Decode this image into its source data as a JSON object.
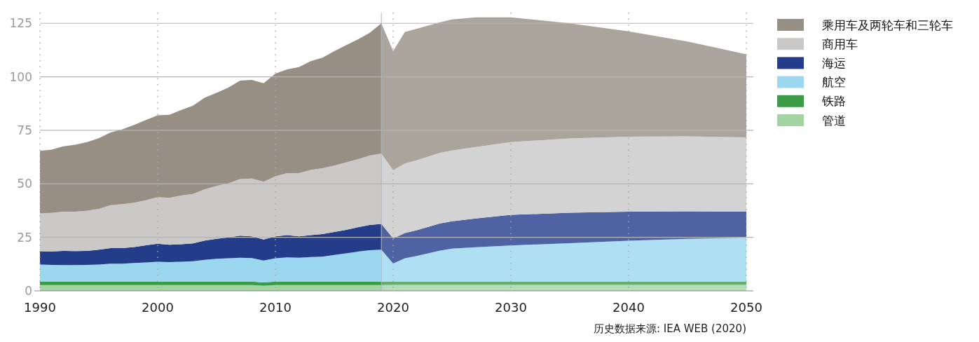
{
  "chart_data": {
    "type": "area",
    "stacked": true,
    "x": [
      1990,
      1991,
      1992,
      1993,
      1994,
      1995,
      1996,
      1997,
      1998,
      1999,
      2000,
      2001,
      2002,
      2003,
      2004,
      2005,
      2006,
      2007,
      2008,
      2009,
      2010,
      2011,
      2012,
      2013,
      2014,
      2015,
      2016,
      2017,
      2018,
      2019,
      2020,
      2021,
      2022,
      2024,
      2025,
      2027,
      2030,
      2035,
      2040,
      2045,
      2050
    ],
    "series": [
      {
        "name": "管道",
        "color": "#a3d5a3",
        "values": [
          2.7,
          2.7,
          2.7,
          2.7,
          2.7,
          2.7,
          2.7,
          2.7,
          2.7,
          2.7,
          2.7,
          2.7,
          2.7,
          2.7,
          2.7,
          2.7,
          2.7,
          2.7,
          2.7,
          2.4,
          2.7,
          2.7,
          2.7,
          2.7,
          2.7,
          2.7,
          2.7,
          2.7,
          2.7,
          2.7,
          2.8,
          2.8,
          2.8,
          2.8,
          2.8,
          2.8,
          2.8,
          2.8,
          2.8,
          2.8,
          2.8
        ]
      },
      {
        "name": "铁路",
        "color": "#3a9c47",
        "values": [
          1.6,
          1.6,
          1.6,
          1.6,
          1.6,
          1.6,
          1.6,
          1.6,
          1.6,
          1.6,
          1.6,
          1.6,
          1.6,
          1.6,
          1.6,
          1.6,
          1.6,
          1.6,
          1.6,
          1.5,
          1.6,
          1.6,
          1.6,
          1.6,
          1.6,
          1.6,
          1.6,
          1.6,
          1.6,
          1.6,
          1.5,
          1.5,
          1.5,
          1.5,
          1.5,
          1.5,
          1.5,
          1.5,
          1.5,
          1.5,
          1.5
        ]
      },
      {
        "name": "航空",
        "color": "#9bd8f0",
        "values": [
          8.0,
          7.8,
          7.7,
          7.7,
          7.8,
          8.0,
          8.4,
          8.4,
          8.7,
          9.0,
          9.3,
          9.1,
          9.3,
          9.5,
          10.2,
          10.7,
          10.9,
          11.2,
          11.0,
          10.3,
          10.9,
          11.3,
          11.2,
          11.5,
          11.7,
          12.5,
          13.2,
          14.0,
          14.7,
          14.9,
          8.5,
          10.9,
          12.0,
          14.5,
          15.4,
          16.1,
          16.9,
          18.0,
          19.1,
          20.0,
          20.6
        ]
      },
      {
        "name": "海运",
        "color": "#233d8b",
        "values": [
          6.2,
          6.3,
          6.7,
          6.6,
          6.6,
          6.9,
          7.3,
          7.3,
          7.5,
          8.0,
          8.4,
          8.1,
          8.2,
          8.4,
          9.0,
          9.3,
          9.8,
          10.3,
          10.2,
          9.8,
          10.3,
          10.4,
          10.0,
          10.2,
          10.5,
          10.7,
          11.0,
          11.4,
          11.8,
          12.1,
          11.7,
          11.8,
          12.0,
          12.7,
          12.8,
          13.4,
          14.3,
          14.2,
          13.6,
          12.9,
          12.1
        ]
      },
      {
        "name": "商用车",
        "color": "#cac9c8",
        "values": [
          17.7,
          18.0,
          18.3,
          18.4,
          18.7,
          19.1,
          20.0,
          20.5,
          20.7,
          21.0,
          21.8,
          22.0,
          22.7,
          23.1,
          24.0,
          24.7,
          25.3,
          26.4,
          27.0,
          27.0,
          28.0,
          29.0,
          29.5,
          30.5,
          30.8,
          31.0,
          31.5,
          31.8,
          32.4,
          32.9,
          31.8,
          32.5,
          32.7,
          33.0,
          33.1,
          33.4,
          34.0,
          34.7,
          35.0,
          35.0,
          34.7
        ]
      },
      {
        "name": "乘用车及两轮车和三轮车",
        "color": "#978e84",
        "values": [
          29.2,
          29.6,
          30.5,
          31.3,
          32.1,
          33.0,
          34.0,
          35.0,
          36.3,
          37.5,
          38.2,
          38.8,
          40.0,
          41.2,
          42.8,
          43.5,
          44.7,
          46.0,
          46.1,
          46.0,
          48.0,
          48.5,
          49.5,
          50.8,
          51.7,
          53.5,
          54.8,
          56.0,
          57.3,
          60.8,
          55.7,
          61.5,
          61.5,
          61.0,
          61.2,
          60.6,
          58.3,
          53.8,
          49.2,
          44.3,
          38.8
        ]
      }
    ],
    "xlim": [
      1990,
      2050
    ],
    "xticks": [
      1990,
      2000,
      2010,
      2020,
      2030,
      2040,
      2050
    ],
    "ylim": [
      0,
      130
    ],
    "yticks": [
      0,
      25,
      50,
      75,
      100,
      125
    ],
    "grid": true,
    "legend": "right",
    "ref_lines": [
      {
        "axis": "x",
        "value": 2019,
        "label": null,
        "color": "#aeb8c4"
      }
    ],
    "bands": [
      {
        "axis": "x",
        "from": 2019,
        "to": 2050,
        "label": null,
        "color": "#ffffff"
      }
    ],
    "annotations": [
      "历史数据来源: IEA WEB (2020)"
    ]
  }
}
